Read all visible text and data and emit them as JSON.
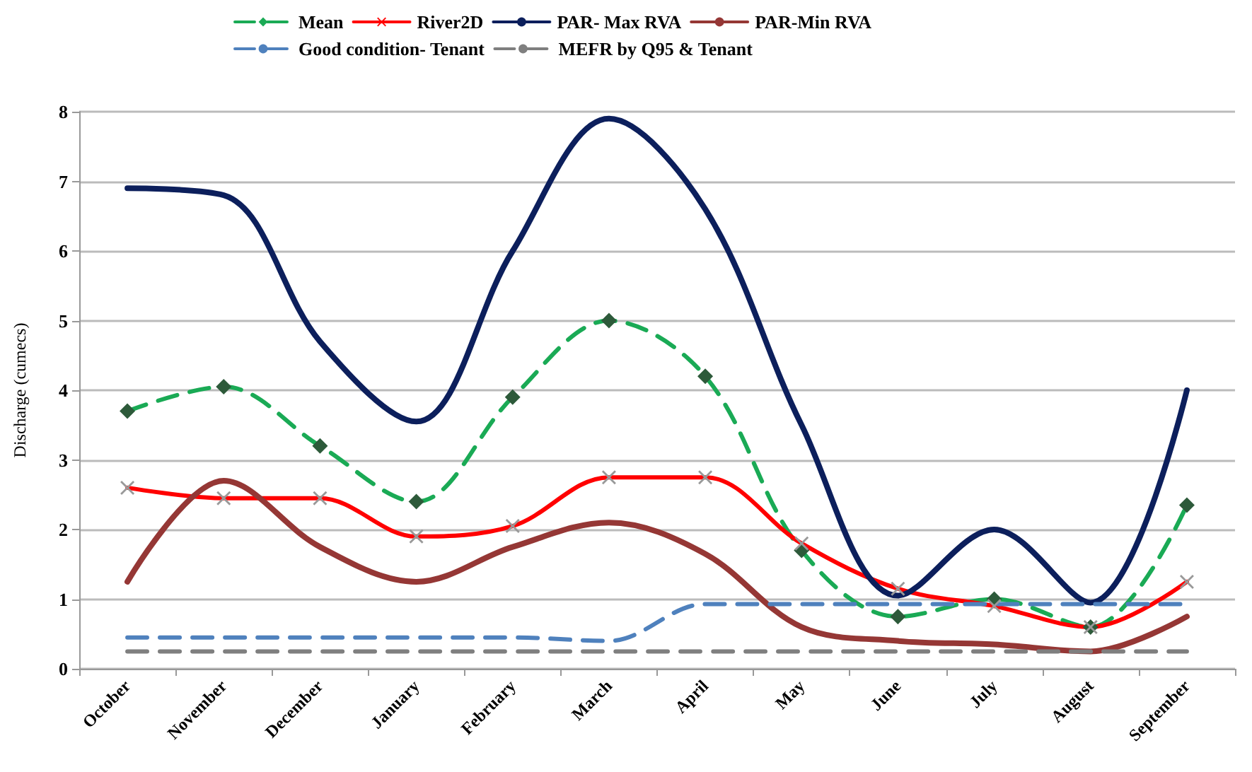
{
  "chart_data": {
    "type": "line",
    "ylabel": "Discharge (cumecs)",
    "categories": [
      "October",
      "November",
      "December",
      "January",
      "February",
      "March",
      "April",
      "May",
      "June",
      "July",
      "August",
      "September"
    ],
    "series": [
      {
        "name": "Mean",
        "color": "#1aaa55",
        "line_style": "dashed",
        "marker": "diamond",
        "values": [
          3.7,
          4.05,
          3.2,
          2.4,
          3.9,
          5.0,
          4.2,
          1.7,
          0.75,
          1.0,
          0.6,
          2.35
        ]
      },
      {
        "name": "River2D",
        "color": "#ff0000",
        "line_style": "solid",
        "marker": "cross",
        "values": [
          2.6,
          2.45,
          2.45,
          1.9,
          2.05,
          2.75,
          2.75,
          1.8,
          1.15,
          0.9,
          0.6,
          1.25
        ]
      },
      {
        "name": "PAR- Max RVA",
        "color": "#0c1f5c",
        "line_style": "solid",
        "marker": "none",
        "values": [
          6.9,
          6.8,
          4.7,
          3.55,
          6.0,
          7.9,
          6.6,
          3.5,
          1.05,
          2.0,
          0.95,
          4.0
        ]
      },
      {
        "name": "PAR-Min RVA",
        "color": "#953735",
        "line_style": "solid",
        "marker": "none",
        "values": [
          1.25,
          2.7,
          1.75,
          1.25,
          1.75,
          2.1,
          1.65,
          0.6,
          0.4,
          0.35,
          0.25,
          0.75
        ]
      },
      {
        "name": "Good condition- Tenant",
        "color": "#4f81bd",
        "line_style": "dashed",
        "marker": "none",
        "values": [
          0.45,
          0.45,
          0.45,
          0.45,
          0.45,
          0.4,
          0.93,
          0.93,
          0.93,
          0.93,
          0.93,
          0.93
        ]
      },
      {
        "name": "MEFR by Q95 & Tenant",
        "color": "#7f7f7f",
        "line_style": "dashed",
        "marker": "none",
        "values": [
          0.25,
          0.25,
          0.25,
          0.25,
          0.25,
          0.25,
          0.25,
          0.25,
          0.25,
          0.25,
          0.25,
          0.25
        ]
      }
    ],
    "ylim": [
      0,
      8
    ],
    "yticks": [
      0,
      1,
      2,
      3,
      4,
      5,
      6,
      7,
      8
    ],
    "grid": "y",
    "legend": "top"
  }
}
